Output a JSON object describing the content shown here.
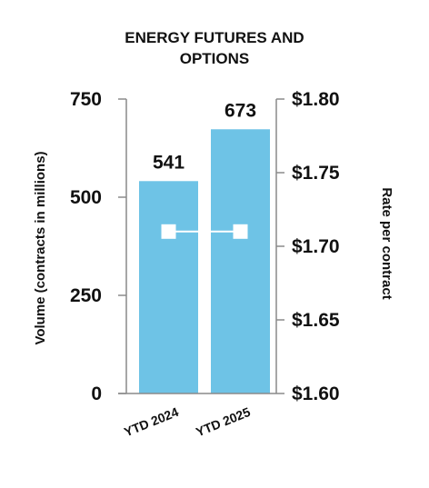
{
  "chart_data": {
    "type": "bar",
    "title_lines": [
      "ENERGY FUTURES AND",
      "OPTIONS"
    ],
    "ylabel": "Volume (contracts in millions)",
    "y2label": "Rate per contract",
    "categories": [
      "YTD 2024",
      "YTD 2025"
    ],
    "series": [
      {
        "type": "bar",
        "values": [
          541,
          673
        ],
        "data_labels": [
          "541",
          "673"
        ],
        "color": "#6ec3e6"
      },
      {
        "type": "line",
        "axis": "right",
        "values": [
          1.71,
          1.71
        ],
        "color": "#ffffff"
      }
    ],
    "ylim": [
      0,
      750
    ],
    "yticks": [
      0,
      250,
      500,
      750
    ],
    "yticks_labels": [
      "0",
      "250",
      "500",
      "750"
    ],
    "y2lim": [
      1.6,
      1.8
    ],
    "y2ticks": [
      1.6,
      1.65,
      1.7,
      1.75,
      1.8
    ],
    "y2ticks_labels": [
      "$1.60",
      "$1.65",
      "$1.70",
      "$1.75",
      "$1.80"
    ],
    "grid": false,
    "axis_color": "#8a8a8a"
  }
}
